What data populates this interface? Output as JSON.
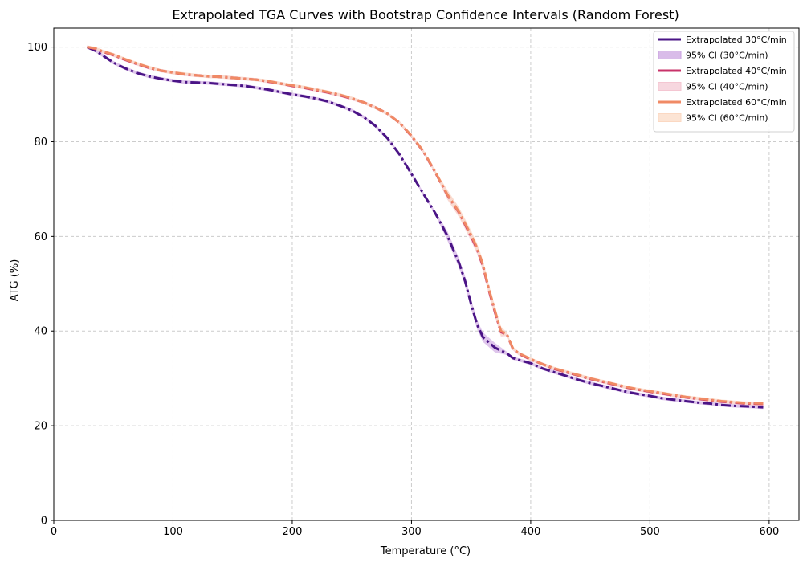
{
  "chart_data": {
    "type": "line",
    "title": "Extrapolated TGA Curves with Bootstrap Confidence Intervals (Random Forest)",
    "xlabel": "Temperature (°C)",
    "ylabel": "ATG (%)",
    "xlim": [
      0,
      625
    ],
    "ylim": [
      0,
      104
    ],
    "xticks": [
      0,
      100,
      200,
      300,
      400,
      500,
      600
    ],
    "yticks": [
      0,
      20,
      40,
      60,
      80,
      100
    ],
    "grid": true,
    "legend_position": "top-right",
    "legend": [
      {
        "label": "Extrapolated 30°C/min",
        "kind": "line",
        "color": "#4a1486"
      },
      {
        "label": "95% CI (30°C/min)",
        "kind": "band",
        "color": "#c9a0e0"
      },
      {
        "label": "Extrapolated 40°C/min",
        "kind": "line",
        "color": "#c8336a"
      },
      {
        "label": "95% CI (40°C/min)",
        "kind": "band",
        "color": "#f4c6d2"
      },
      {
        "label": "Extrapolated 60°C/min",
        "kind": "line",
        "color": "#f08a65"
      },
      {
        "label": "95% CI (60°C/min)",
        "kind": "band",
        "color": "#fbd8c2"
      }
    ],
    "series": [
      {
        "name": "Extrapolated 30°C/min",
        "color": "#4a1486",
        "band_color": "#c9a0e0",
        "x": [
          28,
          35,
          40,
          50,
          60,
          70,
          80,
          90,
          100,
          110,
          120,
          130,
          140,
          150,
          160,
          170,
          180,
          190,
          200,
          210,
          220,
          230,
          240,
          250,
          260,
          270,
          280,
          290,
          300,
          310,
          320,
          330,
          340,
          345,
          350,
          355,
          360,
          370,
          380,
          385,
          390,
          400,
          410,
          420,
          430,
          440,
          450,
          460,
          470,
          480,
          490,
          500,
          510,
          520,
          530,
          540,
          550,
          560,
          570,
          580,
          595
        ],
        "y": [
          100,
          99.2,
          98.4,
          96.7,
          95.5,
          94.5,
          93.8,
          93.3,
          92.9,
          92.6,
          92.5,
          92.4,
          92.2,
          92.0,
          91.8,
          91.4,
          91.0,
          90.5,
          90.0,
          89.6,
          89.1,
          88.5,
          87.6,
          86.6,
          85.2,
          83.3,
          80.7,
          77.3,
          73.2,
          69.0,
          64.9,
          60.2,
          54.3,
          50.5,
          45.7,
          41.4,
          38.7,
          36.5,
          35.3,
          34.3,
          33.9,
          33.2,
          32.1,
          31.3,
          30.5,
          29.7,
          29.0,
          28.4,
          27.8,
          27.2,
          26.7,
          26.3,
          25.8,
          25.5,
          25.2,
          24.9,
          24.7,
          24.4,
          24.2,
          24.1,
          23.9
        ]
      },
      {
        "name": "Extrapolated 40°C/min",
        "color": "#c8336a",
        "band_color": "#f4c6d2",
        "x": [
          28,
          35,
          40,
          50,
          60,
          70,
          80,
          90,
          100,
          110,
          120,
          130,
          140,
          150,
          160,
          170,
          180,
          190,
          200,
          210,
          220,
          230,
          240,
          250,
          260,
          270,
          280,
          290,
          300,
          310,
          320,
          330,
          340,
          350,
          355,
          360,
          365,
          370,
          375,
          380,
          385,
          390,
          400,
          410,
          420,
          430,
          440,
          450,
          460,
          470,
          480,
          490,
          500,
          510,
          520,
          530,
          540,
          550,
          560,
          570,
          580,
          595
        ],
        "y": [
          100,
          99.6,
          99.1,
          98.3,
          97.3,
          96.4,
          95.6,
          95.0,
          94.6,
          94.2,
          94.0,
          93.8,
          93.7,
          93.5,
          93.3,
          93.1,
          92.7,
          92.3,
          91.8,
          91.4,
          90.9,
          90.4,
          89.8,
          89.1,
          88.3,
          87.2,
          85.9,
          84.0,
          81.2,
          77.9,
          73.5,
          68.8,
          65.0,
          60.0,
          57.3,
          53.7,
          48.5,
          44.0,
          39.8,
          39.3,
          36.3,
          35.2,
          34.0,
          33.0,
          32.0,
          31.3,
          30.6,
          29.9,
          29.3,
          28.7,
          28.1,
          27.6,
          27.2,
          26.8,
          26.4,
          26.0,
          25.7,
          25.4,
          25.1,
          24.9,
          24.7,
          24.6
        ]
      },
      {
        "name": "Extrapolated 60°C/min",
        "color": "#f08a65",
        "band_color": "#fbd8c2",
        "x": [
          28,
          35,
          40,
          50,
          60,
          70,
          80,
          90,
          100,
          110,
          120,
          130,
          140,
          150,
          160,
          170,
          180,
          190,
          200,
          210,
          220,
          230,
          240,
          250,
          260,
          270,
          280,
          290,
          300,
          310,
          320,
          330,
          340,
          350,
          355,
          360,
          365,
          370,
          375,
          380,
          385,
          390,
          400,
          410,
          420,
          430,
          440,
          450,
          460,
          470,
          480,
          490,
          500,
          510,
          520,
          530,
          540,
          550,
          560,
          570,
          580,
          595
        ],
        "y": [
          100,
          99.7,
          99.2,
          98.4,
          97.4,
          96.5,
          95.7,
          95.0,
          94.6,
          94.3,
          94.0,
          93.8,
          93.7,
          93.5,
          93.3,
          93.1,
          92.8,
          92.3,
          91.9,
          91.5,
          91.0,
          90.5,
          89.9,
          89.2,
          88.3,
          87.2,
          85.9,
          84.0,
          81.3,
          78.0,
          73.6,
          68.9,
          65.1,
          60.3,
          57.6,
          54.0,
          48.8,
          44.3,
          40.0,
          39.4,
          36.4,
          35.3,
          34.1,
          33.0,
          32.1,
          31.4,
          30.7,
          30.0,
          29.4,
          28.8,
          28.2,
          27.7,
          27.3,
          26.9,
          26.5,
          26.1,
          25.8,
          25.5,
          25.2,
          25.0,
          24.8,
          24.7
        ]
      }
    ]
  }
}
